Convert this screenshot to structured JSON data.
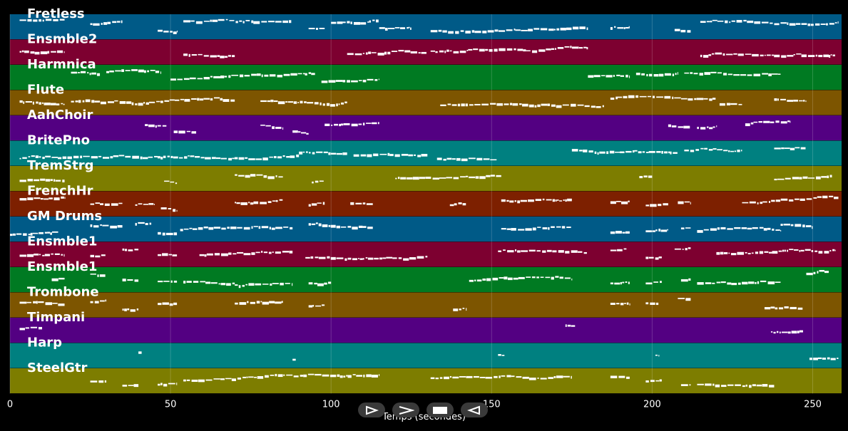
{
  "tracks": [
    {
      "name": "Fretless",
      "color": "#005a87"
    },
    {
      "name": "Ensmble2",
      "color": "#7d0030"
    },
    {
      "name": "Harmnica",
      "color": "#007a22"
    },
    {
      "name": "Flute",
      "color": "#7d5500"
    },
    {
      "name": "AahChoir",
      "color": "#530082"
    },
    {
      "name": "BritePno",
      "color": "#008080"
    },
    {
      "name": "TremStrg",
      "color": "#7d7d00"
    },
    {
      "name": "FrenchHr",
      "color": "#7d2000"
    },
    {
      "name": "GM Drums",
      "color": "#005a87"
    },
    {
      "name": "Ensmble1",
      "color": "#7d0030"
    },
    {
      "name": "Ensmble1",
      "color": "#007a22"
    },
    {
      "name": "Trombone",
      "color": "#7d5500"
    },
    {
      "name": "Timpani",
      "color": "#530082"
    },
    {
      "name": "Harp",
      "color": "#008080"
    },
    {
      "name": "SteelGtr",
      "color": "#7d7d00"
    }
  ],
  "x_axis": {
    "title": "Temps (secondes)",
    "min": 0,
    "max": 259,
    "ticks": [
      0,
      50,
      100,
      150,
      200,
      250
    ]
  },
  "note_color": "#ffffff",
  "controls": {
    "play": "play-icon",
    "fast_forward": "fast-forward-icon",
    "stop": "stop-icon",
    "rewind": "rewind-icon"
  }
}
